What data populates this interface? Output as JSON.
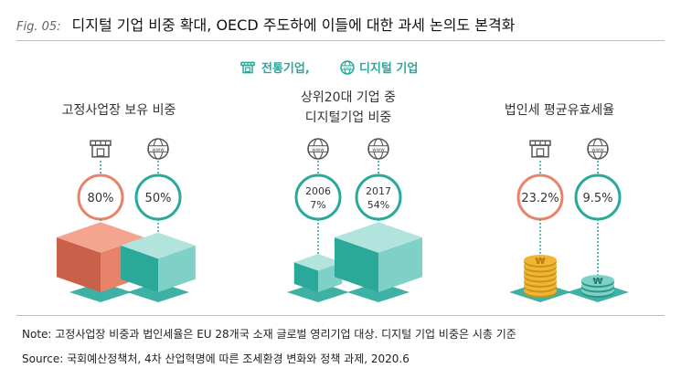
{
  "figure": {
    "label": "Fig. 05:",
    "title": "디지털 기업 비중 확대, OECD 주도하에 이들에 대한 과세 논의도 본격화"
  },
  "legend": {
    "traditional": "전통기업,",
    "digital": "디지털 기업",
    "traditional_icon": "store-icon",
    "digital_icon": "globe-www-icon"
  },
  "colors": {
    "primary": "#2aa89a",
    "primary_light": "#7fd1c8",
    "orange": "#e8826a",
    "orange_dark": "#c9604a",
    "gold": "#f0b632",
    "gold_dark": "#c9921a",
    "label_text": "#333333",
    "legend_text": "#2aa89a"
  },
  "chart_data": [
    {
      "type": "bar",
      "title": "고정사업장 보유 비중",
      "series": [
        {
          "name": "전통기업",
          "value_label": "80%",
          "value": 80,
          "icon": "store-icon",
          "shape": "cube"
        },
        {
          "name": "디지털 기업",
          "value_label": "50%",
          "value": 50,
          "icon": "globe-www-icon",
          "shape": "cube"
        }
      ]
    },
    {
      "type": "bar",
      "title_lines": [
        "상위20대 기업 중",
        "디지털기업 비중"
      ],
      "series": [
        {
          "year": "2006",
          "value_label": "7%",
          "value": 7,
          "icon": "globe-www-icon",
          "shape": "cube"
        },
        {
          "year": "2017",
          "value_label": "54%",
          "value": 54,
          "icon": "globe-www-icon",
          "shape": "cube"
        }
      ]
    },
    {
      "type": "bar",
      "title": "법인세 평균유효세율",
      "series": [
        {
          "name": "전통기업",
          "value_label": "23.2%",
          "value": 23.2,
          "icon": "store-icon",
          "shape": "coins"
        },
        {
          "name": "디지털 기업",
          "value_label": "9.5%",
          "value": 9.5,
          "icon": "globe-www-icon",
          "shape": "coins"
        }
      ]
    }
  ],
  "notes": {
    "note": "Note: 고정사업장 비중과 법인세율은 EU 28개국 소재 글로벌 영리기업 대상. 디지털 기업 비중은 시총 기준",
    "source": "Source: 국회예산정책처, 4차 산업혁명에 따른 조세환경 변화와 정책 과제, 2020.6"
  }
}
